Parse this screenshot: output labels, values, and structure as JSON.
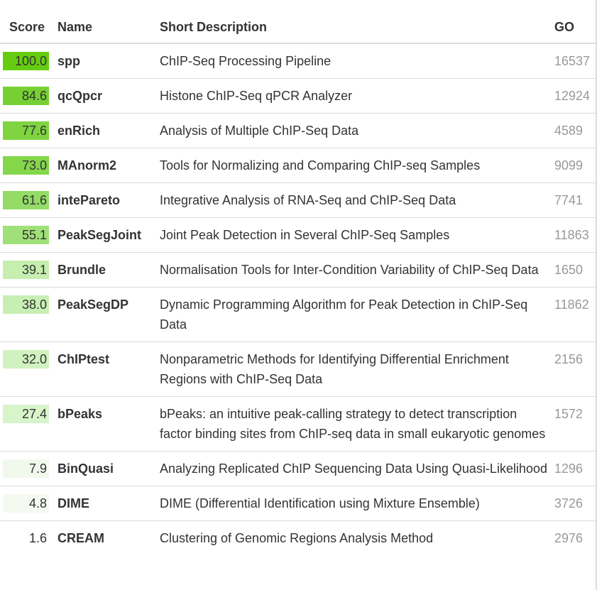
{
  "table": {
    "headers": {
      "score": "Score",
      "name": "Name",
      "description": "Short Description",
      "go": "GO"
    },
    "rows": [
      {
        "score": "100.0",
        "name": "spp",
        "description": "ChIP-Seq Processing Pipeline",
        "go": "16537",
        "score_color": "#66cc11"
      },
      {
        "score": "84.6",
        "name": "qcQpcr",
        "description": "Histone ChIP-Seq qPCR Analyzer",
        "go": "12924",
        "score_color": "#77d033"
      },
      {
        "score": "77.6",
        "name": "enRich",
        "description": "Analysis of Multiple ChIP-Seq Data",
        "go": "4589",
        "score_color": "#7fd440"
      },
      {
        "score": "73.0",
        "name": "MAnorm2",
        "description": "Tools for Normalizing and Comparing ChIP-seq Samples",
        "go": "9099",
        "score_color": "#84d64a"
      },
      {
        "score": "61.6",
        "name": "intePareto",
        "description": "Integrative Analysis of RNA-Seq and ChIP-Seq Data",
        "go": "7741",
        "score_color": "#94dc66"
      },
      {
        "score": "55.1",
        "name": "PeakSegJoint",
        "description": "Joint Peak Detection in Several ChIP-Seq Samples",
        "go": "11863",
        "score_color": "#a0e079"
      },
      {
        "score": "39.1",
        "name": "Brundle",
        "description": "Normalisation Tools for Inter-Condition Variability of ChIP-Seq Data",
        "go": "1650",
        "score_color": "#c6eeaf"
      },
      {
        "score": "38.0",
        "name": "PeakSegDP",
        "description": "Dynamic Programming Algorithm for Peak Detection in ChIP-Seq Data",
        "go": "11862",
        "score_color": "#c8efb3"
      },
      {
        "score": "32.0",
        "name": "ChIPtest",
        "description": "Nonparametric Methods for Identifying Differential Enrichment Regions with ChIP-Seq Data",
        "go": "2156",
        "score_color": "#d1f2c0"
      },
      {
        "score": "27.4",
        "name": "bPeaks",
        "description": "bPeaks: an intuitive peak-calling strategy to detect transcription factor binding sites from ChIP-seq data in small eukaryotic genomes",
        "go": "1572",
        "score_color": "#d8f4ca"
      },
      {
        "score": "7.9",
        "name": "BinQuasi",
        "description": "Analyzing Replicated ChIP Sequencing Data Using Quasi-Likelihood",
        "go": "1296",
        "score_color": "#f1f9ec"
      },
      {
        "score": "4.8",
        "name": "DIME",
        "description": "DIME (Differential Identification using Mixture Ensemble)",
        "go": "3726",
        "score_color": "#f4faf0"
      },
      {
        "score": "1.6",
        "name": "CREAM",
        "description": "Clustering of Genomic Regions Analysis Method",
        "go": "2976",
        "score_color": "#ffffff"
      }
    ]
  }
}
